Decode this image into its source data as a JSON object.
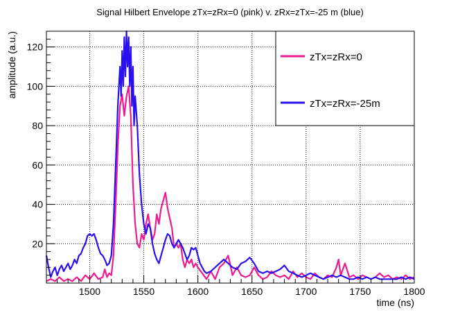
{
  "chart_data": {
    "type": "line",
    "title": "Signal Hilbert Envelope zTx=zRx=0 (pink) v. zRx=zTx=-25 m (blue)",
    "xlabel": "time (ns)",
    "ylabel": "amplitude (a.u.)",
    "xlim": [
      1460,
      1800
    ],
    "ylim": [
      0,
      128
    ],
    "x_ticks": [
      1500,
      1550,
      1600,
      1650,
      1700,
      1750,
      1800
    ],
    "y_ticks": [
      20,
      40,
      60,
      80,
      100,
      120
    ],
    "grid": true,
    "legend_position": "top-right",
    "series": [
      {
        "name": "zTx=zRx=0",
        "color": "#ee1a8f",
        "points": [
          [
            1460,
            1
          ],
          [
            1464,
            2
          ],
          [
            1468,
            1
          ],
          [
            1472,
            3
          ],
          [
            1476,
            1
          ],
          [
            1480,
            2
          ],
          [
            1484,
            1
          ],
          [
            1488,
            3
          ],
          [
            1492,
            1
          ],
          [
            1496,
            4
          ],
          [
            1500,
            2
          ],
          [
            1504,
            5
          ],
          [
            1508,
            2
          ],
          [
            1512,
            3
          ],
          [
            1514,
            7
          ],
          [
            1516,
            3
          ],
          [
            1518,
            5
          ],
          [
            1520,
            4
          ],
          [
            1522,
            14
          ],
          [
            1524,
            40
          ],
          [
            1526,
            70
          ],
          [
            1528,
            90
          ],
          [
            1530,
            96
          ],
          [
            1532,
            85
          ],
          [
            1534,
            95
          ],
          [
            1536,
            100
          ],
          [
            1538,
            85
          ],
          [
            1540,
            50
          ],
          [
            1542,
            30
          ],
          [
            1544,
            20
          ],
          [
            1546,
            18
          ],
          [
            1548,
            25
          ],
          [
            1550,
            22
          ],
          [
            1552,
            30
          ],
          [
            1554,
            35
          ],
          [
            1556,
            28
          ],
          [
            1558,
            22
          ],
          [
            1560,
            25
          ],
          [
            1562,
            35
          ],
          [
            1564,
            30
          ],
          [
            1566,
            38
          ],
          [
            1568,
            42
          ],
          [
            1570,
            46
          ],
          [
            1572,
            38
          ],
          [
            1574,
            33
          ],
          [
            1576,
            28
          ],
          [
            1578,
            18
          ],
          [
            1580,
            20
          ],
          [
            1582,
            18
          ],
          [
            1584,
            20
          ],
          [
            1586,
            12
          ],
          [
            1588,
            8
          ],
          [
            1590,
            12
          ],
          [
            1592,
            10
          ],
          [
            1594,
            12
          ],
          [
            1596,
            8
          ],
          [
            1598,
            10
          ],
          [
            1600,
            8
          ],
          [
            1604,
            5
          ],
          [
            1608,
            2
          ],
          [
            1612,
            6
          ],
          [
            1616,
            2
          ],
          [
            1620,
            8
          ],
          [
            1624,
            10
          ],
          [
            1628,
            14
          ],
          [
            1632,
            4
          ],
          [
            1636,
            8
          ],
          [
            1640,
            4
          ],
          [
            1644,
            3
          ],
          [
            1648,
            4
          ],
          [
            1652,
            8
          ],
          [
            1656,
            4
          ],
          [
            1660,
            2
          ],
          [
            1664,
            3
          ],
          [
            1668,
            6
          ],
          [
            1672,
            4
          ],
          [
            1676,
            3
          ],
          [
            1680,
            4
          ],
          [
            1684,
            2
          ],
          [
            1688,
            6
          ],
          [
            1692,
            3
          ],
          [
            1696,
            5
          ],
          [
            1700,
            3
          ],
          [
            1704,
            2
          ],
          [
            1708,
            5
          ],
          [
            1712,
            3
          ],
          [
            1716,
            2
          ],
          [
            1720,
            4
          ],
          [
            1724,
            3
          ],
          [
            1728,
            8
          ],
          [
            1730,
            12
          ],
          [
            1732,
            4
          ],
          [
            1736,
            10
          ],
          [
            1740,
            3
          ],
          [
            1744,
            4
          ],
          [
            1748,
            2
          ],
          [
            1752,
            4
          ],
          [
            1756,
            3
          ],
          [
            1760,
            2
          ],
          [
            1764,
            3
          ],
          [
            1768,
            5
          ],
          [
            1772,
            3
          ],
          [
            1776,
            4
          ],
          [
            1780,
            2
          ],
          [
            1784,
            3
          ],
          [
            1788,
            2
          ],
          [
            1792,
            4
          ],
          [
            1796,
            2
          ],
          [
            1800,
            3
          ]
        ]
      },
      {
        "name": "zTx=zRx=-25m",
        "color": "#2a0ff0",
        "points": [
          [
            1460,
            14
          ],
          [
            1462,
            8
          ],
          [
            1464,
            3
          ],
          [
            1466,
            6
          ],
          [
            1468,
            8
          ],
          [
            1470,
            4
          ],
          [
            1472,
            7
          ],
          [
            1474,
            9
          ],
          [
            1476,
            6
          ],
          [
            1478,
            8
          ],
          [
            1480,
            10
          ],
          [
            1482,
            7
          ],
          [
            1484,
            9
          ],
          [
            1486,
            12
          ],
          [
            1488,
            10
          ],
          [
            1490,
            14
          ],
          [
            1492,
            15
          ],
          [
            1494,
            18
          ],
          [
            1496,
            20
          ],
          [
            1498,
            24
          ],
          [
            1500,
            25
          ],
          [
            1502,
            24
          ],
          [
            1504,
            25
          ],
          [
            1506,
            22
          ],
          [
            1508,
            18
          ],
          [
            1510,
            15
          ],
          [
            1512,
            14
          ],
          [
            1514,
            12
          ],
          [
            1516,
            9
          ],
          [
            1518,
            10
          ],
          [
            1520,
            14
          ],
          [
            1522,
            30
          ],
          [
            1524,
            60
          ],
          [
            1526,
            90
          ],
          [
            1528,
            110
          ],
          [
            1529,
            95
          ],
          [
            1530,
            118
          ],
          [
            1531,
            100
          ],
          [
            1532,
            125
          ],
          [
            1533,
            105
          ],
          [
            1534,
            128
          ],
          [
            1535,
            110
          ],
          [
            1536,
            125
          ],
          [
            1537,
            100
          ],
          [
            1538,
            120
          ],
          [
            1539,
            90
          ],
          [
            1540,
            110
          ],
          [
            1541,
            80
          ],
          [
            1542,
            95
          ],
          [
            1544,
            80
          ],
          [
            1546,
            55
          ],
          [
            1548,
            40
          ],
          [
            1550,
            30
          ],
          [
            1552,
            25
          ],
          [
            1554,
            30
          ],
          [
            1556,
            28
          ],
          [
            1558,
            20
          ],
          [
            1560,
            15
          ],
          [
            1562,
            12
          ],
          [
            1564,
            10
          ],
          [
            1566,
            14
          ],
          [
            1568,
            18
          ],
          [
            1570,
            22
          ],
          [
            1572,
            25
          ],
          [
            1574,
            24
          ],
          [
            1576,
            20
          ],
          [
            1578,
            18
          ],
          [
            1580,
            20
          ],
          [
            1582,
            22
          ],
          [
            1584,
            20
          ],
          [
            1586,
            18
          ],
          [
            1588,
            15
          ],
          [
            1590,
            12
          ],
          [
            1592,
            14
          ],
          [
            1594,
            18
          ],
          [
            1596,
            17
          ],
          [
            1598,
            18
          ],
          [
            1600,
            14
          ],
          [
            1602,
            10
          ],
          [
            1604,
            8
          ],
          [
            1606,
            6
          ],
          [
            1608,
            5
          ],
          [
            1612,
            6
          ],
          [
            1616,
            8
          ],
          [
            1620,
            10
          ],
          [
            1624,
            12
          ],
          [
            1628,
            10
          ],
          [
            1632,
            8
          ],
          [
            1636,
            7
          ],
          [
            1640,
            10
          ],
          [
            1644,
            11
          ],
          [
            1648,
            13
          ],
          [
            1652,
            10
          ],
          [
            1656,
            6
          ],
          [
            1660,
            5
          ],
          [
            1664,
            6
          ],
          [
            1668,
            5
          ],
          [
            1672,
            6
          ],
          [
            1676,
            7
          ],
          [
            1680,
            9
          ],
          [
            1684,
            6
          ],
          [
            1688,
            5
          ],
          [
            1692,
            4
          ],
          [
            1696,
            3
          ],
          [
            1700,
            4
          ],
          [
            1704,
            5
          ],
          [
            1708,
            4
          ],
          [
            1712,
            3
          ],
          [
            1716,
            2
          ],
          [
            1720,
            3
          ],
          [
            1724,
            4
          ],
          [
            1728,
            3
          ],
          [
            1732,
            4
          ],
          [
            1736,
            3
          ],
          [
            1740,
            2
          ],
          [
            1744,
            2
          ],
          [
            1748,
            3
          ],
          [
            1752,
            2
          ],
          [
            1756,
            3
          ],
          [
            1760,
            2
          ],
          [
            1764,
            3
          ],
          [
            1768,
            2
          ],
          [
            1772,
            2
          ],
          [
            1776,
            2
          ],
          [
            1780,
            2
          ],
          [
            1784,
            2
          ],
          [
            1788,
            3
          ],
          [
            1792,
            2
          ],
          [
            1796,
            3
          ],
          [
            1800,
            2
          ]
        ]
      }
    ]
  }
}
